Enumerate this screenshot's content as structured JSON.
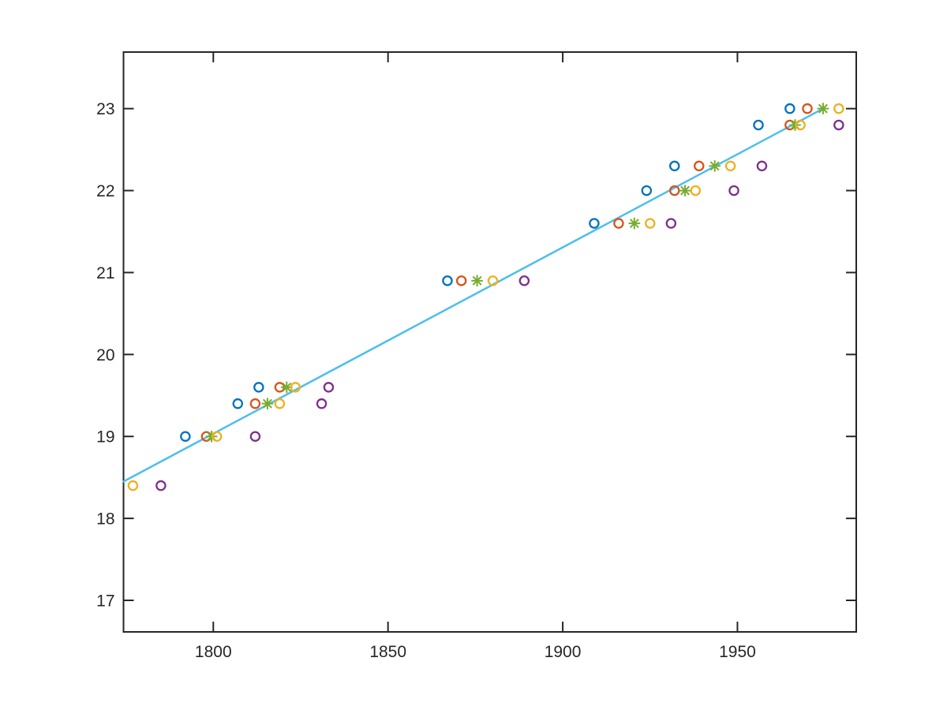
{
  "figure": {
    "background": "#ffffff",
    "axis_color": "#262626",
    "tick_label_color": "#262626"
  },
  "chart_data": {
    "type": "scatter",
    "title": "",
    "xlabel": "",
    "ylabel": "",
    "grid": false,
    "legend_position": "none",
    "xlim": [
      1774.3,
      1984.0
    ],
    "ylim": [
      16.615,
      23.69
    ],
    "xticks": [
      1800,
      1850,
      1900,
      1950
    ],
    "yticks": [
      17,
      18,
      19,
      20,
      21,
      22,
      23
    ],
    "series": [
      {
        "name": "series-blue-circles",
        "kind": "scatter",
        "marker": "circle",
        "color": "#0072BD",
        "points": [
          [
            1792,
            19.0
          ],
          [
            1807,
            19.4
          ],
          [
            1813,
            19.6
          ],
          [
            1867,
            20.9
          ],
          [
            1909,
            21.6
          ],
          [
            1924,
            22.0
          ],
          [
            1932,
            22.3
          ],
          [
            1956,
            22.8
          ],
          [
            1965,
            23.0
          ]
        ]
      },
      {
        "name": "series-orange-circles",
        "kind": "scatter",
        "marker": "circle",
        "color": "#D95319",
        "points": [
          [
            1798,
            19.0
          ],
          [
            1812,
            19.4
          ],
          [
            1819,
            19.6
          ],
          [
            1871,
            20.9
          ],
          [
            1916,
            21.6
          ],
          [
            1932,
            22.0
          ],
          [
            1939,
            22.3
          ],
          [
            1965,
            22.8
          ],
          [
            1970,
            23.0
          ]
        ]
      },
      {
        "name": "series-green-asterisks",
        "kind": "scatter",
        "marker": "asterisk",
        "color": "#77AC30",
        "points": [
          [
            1799.5,
            19.0
          ],
          [
            1815.5,
            19.4
          ],
          [
            1821,
            19.6
          ],
          [
            1875.5,
            20.9
          ],
          [
            1920.5,
            21.6
          ],
          [
            1935,
            22.0
          ],
          [
            1943.5,
            22.3
          ],
          [
            1966.5,
            22.8
          ],
          [
            1974.5,
            23.0
          ]
        ]
      },
      {
        "name": "series-yellow-circles",
        "kind": "scatter",
        "marker": "circle",
        "color": "#EDB120",
        "points": [
          [
            1777,
            18.4
          ],
          [
            1801,
            19.0
          ],
          [
            1819,
            19.4
          ],
          [
            1823.5,
            19.6
          ],
          [
            1880,
            20.9
          ],
          [
            1925,
            21.6
          ],
          [
            1938,
            22.0
          ],
          [
            1948,
            22.3
          ],
          [
            1968,
            22.8
          ],
          [
            1979,
            23.0
          ]
        ]
      },
      {
        "name": "series-purple-circles",
        "kind": "scatter",
        "marker": "circle",
        "color": "#7E2F8E",
        "points": [
          [
            1785,
            18.4
          ],
          [
            1812,
            19.0
          ],
          [
            1831,
            19.4
          ],
          [
            1833,
            19.6
          ],
          [
            1889,
            20.9
          ],
          [
            1931,
            21.6
          ],
          [
            1949,
            22.0
          ],
          [
            1957,
            22.3
          ],
          [
            1979,
            22.8
          ]
        ]
      },
      {
        "name": "fit-line",
        "kind": "line",
        "color": "#4DBEEE",
        "points": [
          [
            1774.3,
            18.45
          ],
          [
            1974.5,
            23.0
          ]
        ]
      }
    ]
  }
}
